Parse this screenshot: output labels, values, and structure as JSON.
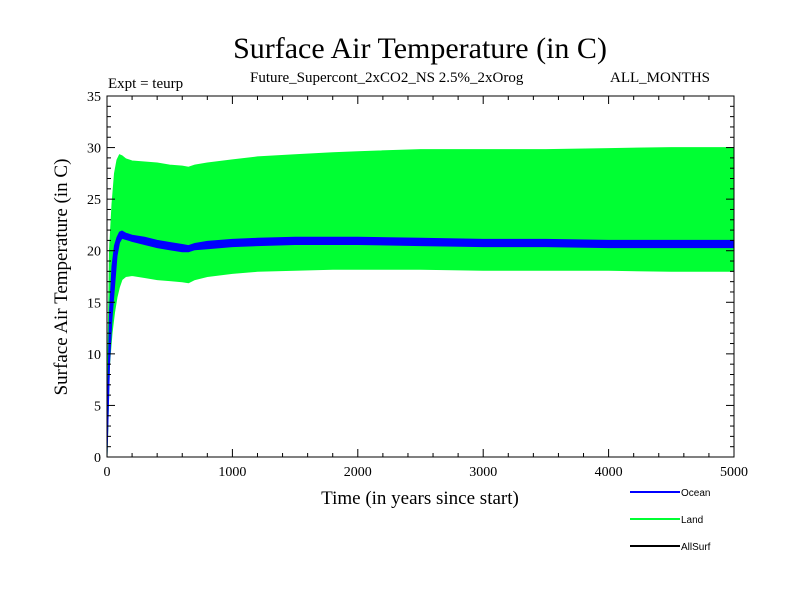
{
  "chart_data": {
    "type": "line",
    "title": "Surface Air Temperature (in C)",
    "expt_label": "Expt = teurp",
    "subtitle": "Future_Supercont_2xCO2_NS 2.5%_2xOrog",
    "months_label": "ALL_MONTHS",
    "xlabel": "Time (in years since start)",
    "ylabel": "Surface Air Temperature (in C)",
    "xlim": [
      0,
      5000
    ],
    "ylim": [
      0,
      35
    ],
    "x_ticks": [
      0,
      1000,
      2000,
      3000,
      4000,
      5000
    ],
    "y_ticks": [
      0,
      5,
      10,
      15,
      20,
      25,
      30,
      35
    ],
    "grid": false,
    "legend_position": "bottom-right",
    "series": [
      {
        "name": "Ocean",
        "color": "#0000ff",
        "style": "band",
        "x": [
          0,
          20,
          40,
          60,
          80,
          100,
          120,
          150,
          200,
          300,
          400,
          500,
          600,
          650,
          700,
          800,
          1000,
          1200,
          1500,
          1800,
          2000,
          2500,
          3000,
          3500,
          4000,
          4500,
          5000
        ],
        "upper": [
          2,
          14,
          18.5,
          20.5,
          21.3,
          21.8,
          21.9,
          21.7,
          21.5,
          21.3,
          21.0,
          20.8,
          20.6,
          20.5,
          20.7,
          20.9,
          21.1,
          21.2,
          21.3,
          21.3,
          21.3,
          21.2,
          21.1,
          21.1,
          21.0,
          21.0,
          21.0
        ],
        "lower": [
          0,
          9,
          13.5,
          16.5,
          19.5,
          20.8,
          21.2,
          21.1,
          20.9,
          20.6,
          20.3,
          20.1,
          19.9,
          19.9,
          20.1,
          20.2,
          20.4,
          20.5,
          20.6,
          20.6,
          20.6,
          20.5,
          20.4,
          20.4,
          20.3,
          20.3,
          20.3
        ]
      },
      {
        "name": "Land",
        "color": "#00ff33",
        "style": "band",
        "x": [
          0,
          20,
          40,
          60,
          80,
          100,
          120,
          150,
          200,
          300,
          400,
          500,
          600,
          650,
          700,
          800,
          1000,
          1200,
          1500,
          1800,
          2000,
          2500,
          3000,
          3500,
          4000,
          4500,
          5000
        ],
        "upper": [
          3,
          20,
          24.5,
          27.5,
          28.8,
          29.3,
          29.2,
          28.9,
          28.7,
          28.6,
          28.5,
          28.3,
          28.2,
          28.1,
          28.3,
          28.5,
          28.8,
          29.1,
          29.3,
          29.5,
          29.6,
          29.8,
          29.8,
          29.8,
          29.9,
          30.0,
          30.0
        ],
        "lower": [
          0,
          9,
          12,
          14,
          15.5,
          16.5,
          17.2,
          17.5,
          17.6,
          17.4,
          17.2,
          17.1,
          17.0,
          16.9,
          17.2,
          17.5,
          17.8,
          18.0,
          18.1,
          18.2,
          18.2,
          18.2,
          18.1,
          18.1,
          18.1,
          18.0,
          18.0
        ]
      },
      {
        "name": "AllSurf",
        "color": "#000000",
        "style": "line",
        "x": [],
        "y": []
      }
    ]
  }
}
